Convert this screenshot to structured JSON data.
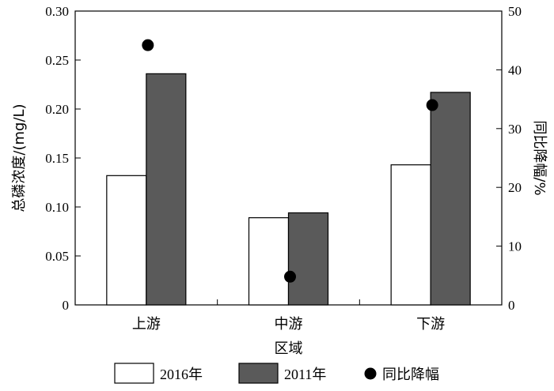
{
  "chart_data": {
    "type": "bar",
    "xlabel": "区域",
    "ylabel": "总磷浓度/(mg/L)",
    "ylabel_right": "同比降幅/%",
    "categories": [
      "上游",
      "中游",
      "下游"
    ],
    "ylim": [
      0,
      0.3
    ],
    "yticks": [
      "0",
      "0.05",
      "0.10",
      "0.15",
      "0.20",
      "0.25",
      "0.30"
    ],
    "ylim_right": [
      0,
      50
    ],
    "yticks_right": [
      "0",
      "10",
      "20",
      "30",
      "40",
      "50"
    ],
    "series": [
      {
        "name": "2016年",
        "values": [
          0.132,
          0.089,
          0.143
        ],
        "color": "#ffffff",
        "axis": "left",
        "kind": "bar"
      },
      {
        "name": "2011年",
        "values": [
          0.236,
          0.094,
          0.217
        ],
        "color": "#5a5a5a",
        "axis": "left",
        "kind": "bar"
      },
      {
        "name": "同比降幅",
        "values": [
          44.2,
          4.8,
          34.0
        ],
        "color": "#000000",
        "axis": "right",
        "kind": "scatter"
      }
    ],
    "grid": false,
    "legend_position": "bottom"
  }
}
